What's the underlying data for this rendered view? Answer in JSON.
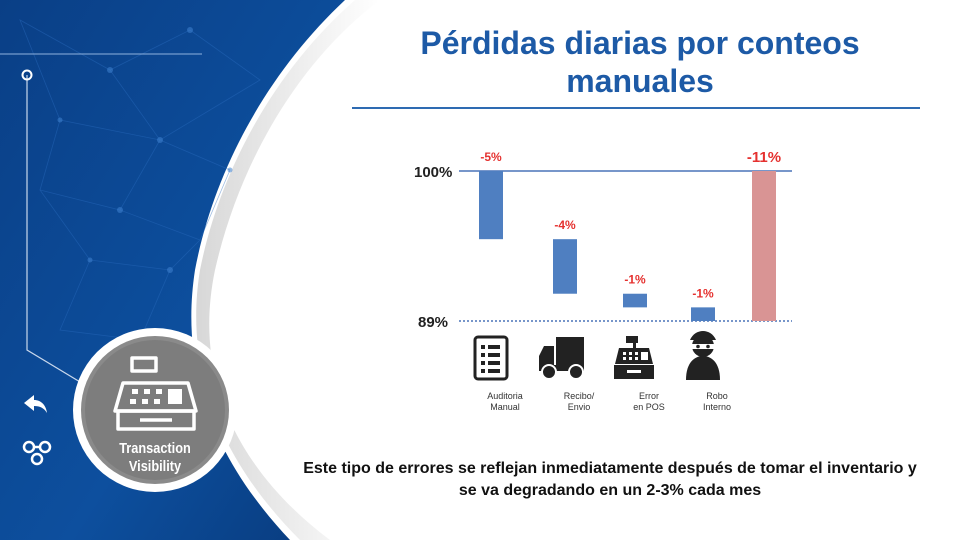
{
  "slide": {
    "title": "Pérdidas diarias por conteos manuales",
    "footnote": "Este tipo de errores se reflejan inmediatamente después de tomar el inventario y se va degradando en un 2-3% cada mes"
  },
  "badge": {
    "line1": "Transaction",
    "line2": "Visibility"
  },
  "nav": {
    "back_icon": "back-arrow-icon",
    "share_icon": "share-nodes-icon"
  },
  "colors": {
    "brand_blue": "#1d5aa6",
    "bar_blue": "#4f7fc1",
    "bar_total": "#d99494",
    "label_red": "#e5312f"
  },
  "chart_data": {
    "type": "waterfall",
    "start_label": "100%",
    "end_label": "89%",
    "start_value": 100,
    "end_value": 89,
    "ylim": [
      89,
      100
    ],
    "steps": [
      {
        "label": "-5%",
        "value": -5,
        "category": "Auditoria\nManual",
        "icon": "checklist-icon"
      },
      {
        "label": "-4%",
        "value": -4,
        "category": "Recibo/\nEnvio",
        "icon": "truck-icon"
      },
      {
        "label": "-1%",
        "value": -1,
        "category": "Error\nen POS",
        "icon": "cash-register-icon"
      },
      {
        "label": "-1%",
        "value": -1,
        "category": "Robo\nInterno",
        "icon": "thief-icon"
      }
    ],
    "total": {
      "label": "-11%",
      "value": -11
    }
  }
}
